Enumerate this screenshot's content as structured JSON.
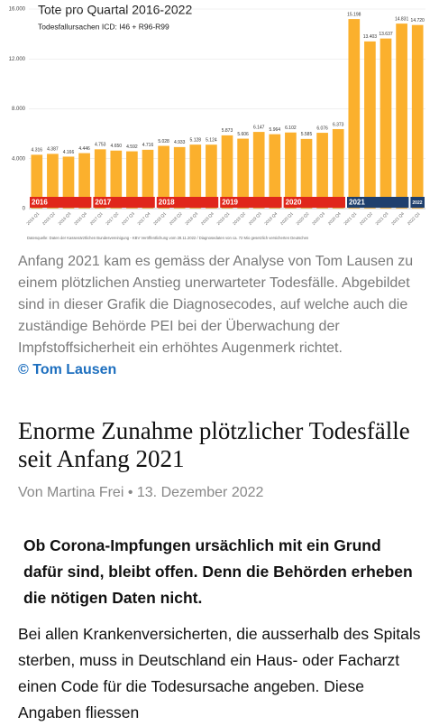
{
  "chart_data": {
    "type": "bar",
    "title": "Tote pro Quartal 2016-2022",
    "subtitle": "Todesfallursachen ICD: I46 + R96-R99",
    "categories": [
      "2016 Q1",
      "2016 Q2",
      "2016 Q3",
      "2016 Q4",
      "2017 Q1",
      "2017 Q2",
      "2017 Q3",
      "2017 Q4",
      "2018 Q1",
      "2018 Q2",
      "2018 Q3",
      "2018 Q4",
      "2019 Q1",
      "2019 Q2",
      "2019 Q3",
      "2019 Q4",
      "2020 Q1",
      "2020 Q2",
      "2020 Q3",
      "2020 Q4",
      "2021 Q1",
      "2021 Q2",
      "2021 Q3",
      "2021 Q4",
      "2022 Q1"
    ],
    "values": [
      4316,
      4387,
      4166,
      4446,
      4753,
      4650,
      4592,
      4716,
      5028,
      4933,
      5128,
      5124,
      5873,
      5606,
      6147,
      5964,
      6102,
      5585,
      6076,
      6373,
      15198,
      13403,
      13637,
      14831,
      14720
    ],
    "value_labels": [
      "4.316",
      "4.387",
      "4.166",
      "4.446",
      "4.753",
      "4.650",
      "4.592",
      "4.716",
      "5.028",
      "4.933",
      "5.128",
      "5.124",
      "5.873",
      "5.606",
      "6.147",
      "5.964",
      "6.102",
      "5.585",
      "6.076",
      "6.373",
      "15.198",
      "13.403",
      "13.637",
      "14.831",
      "14.720"
    ],
    "color": "#fbb02d",
    "ylim": [
      0,
      16000
    ],
    "yticks": [
      0,
      {
        "value": 4000,
        "label": "4.000"
      },
      {
        "value": 8000,
        "label": "8.000"
      },
      {
        "value": 12000,
        "label": "12.000"
      },
      {
        "value": 16000,
        "label": "16.000"
      }
    ],
    "grid": true,
    "year_bands": [
      {
        "label": "2016",
        "color": "#e0261b"
      },
      {
        "label": "2017",
        "color": "#e0261b"
      },
      {
        "label": "2018",
        "color": "#e0261b"
      },
      {
        "label": "2019",
        "color": "#e0261b"
      },
      {
        "label": "2020",
        "color": "#e0261b"
      },
      {
        "label": "2021",
        "color": "#1f3f6e"
      },
      {
        "label": "2022",
        "color": "#1f3f6e"
      }
    ],
    "source": "Datenquelle: Daten der Kassenärztlichen Bundesvereinigung - KBV Veröffentlichung vom 28.11.2022 / Diagnosedaten von ca. 72 Mio gesetzlich versicherten Deutschen"
  },
  "caption": {
    "text": "Anfang 2021 kam es gemäss der Analyse von Tom Lausen zu einem plötzlichen Anstieg unerwarteter Todesfälle. Abgebildet sind in dieser Grafik die Diagnosecodes, auf welche auch die zuständige Behörde PEI bei der Überwachung der Impfstoffsicherheit ein erhöhtes Augenmerk richtet.",
    "credit": "© Tom Lausen"
  },
  "article": {
    "headline": "Enorme Zunahme plötzlicher Todesfälle seit Anfang 2021",
    "byline": "Von Martina Frei • 13. Dezember 2022",
    "lead": "Ob Corona-Impfungen ursächlich mit ein Grund dafür sind, bleibt offen. Denn die Behörden erheben die nötigen Daten nicht.",
    "paragraphs": [
      "Bei allen Krankenversicherten, die ausserhalb des Spitals sterben, muss in Deutschland ein Haus- oder Facharzt einen Code für die Todesursache angeben. Diese Angaben fliessen"
    ]
  }
}
